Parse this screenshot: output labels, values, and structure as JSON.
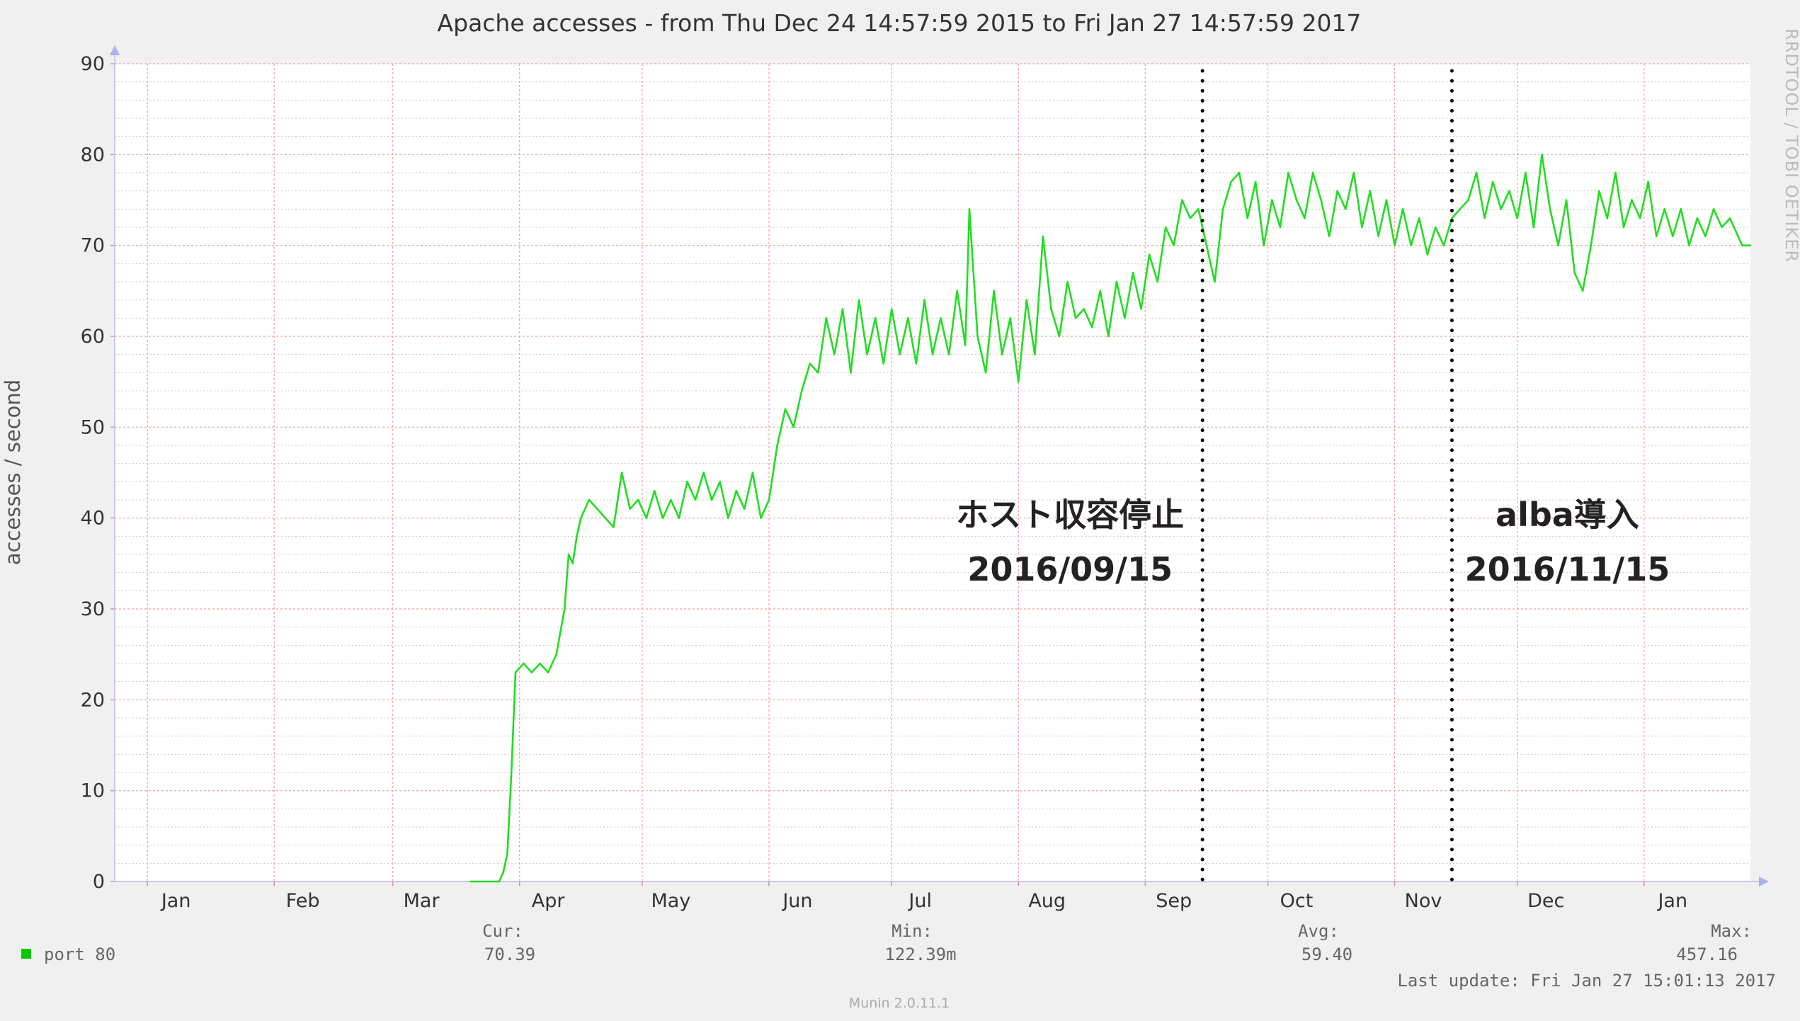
{
  "chart_data": {
    "type": "line",
    "title": "Apache accesses - from Thu Dec 24 14:57:59 2015 to Fri Jan 27 14:57:59 2017",
    "ylabel": "accesses / second",
    "xlabel": "",
    "ylim": [
      0,
      90
    ],
    "yticks": [
      "0",
      "10",
      "20",
      "30",
      "40",
      "50",
      "60",
      "70",
      "80",
      "90"
    ],
    "x_start": "2015-12-24",
    "x_end": "2017-01-27",
    "xticks": [
      {
        "label": "Jan",
        "date": "2016-01-08"
      },
      {
        "label": "Feb",
        "date": "2016-02-08"
      },
      {
        "label": "Mar",
        "date": "2016-03-08"
      },
      {
        "label": "Apr",
        "date": "2016-04-08"
      },
      {
        "label": "May",
        "date": "2016-05-08"
      },
      {
        "label": "Jun",
        "date": "2016-06-08"
      },
      {
        "label": "Jul",
        "date": "2016-07-08"
      },
      {
        "label": "Aug",
        "date": "2016-08-08"
      },
      {
        "label": "Sep",
        "date": "2016-09-08"
      },
      {
        "label": "Oct",
        "date": "2016-10-08"
      },
      {
        "label": "Nov",
        "date": "2016-11-08"
      },
      {
        "label": "Dec",
        "date": "2016-12-08"
      },
      {
        "label": "Jan",
        "date": "2017-01-08"
      }
    ],
    "month_boundaries": [
      "2016-01-01",
      "2016-02-01",
      "2016-03-01",
      "2016-04-01",
      "2016-05-01",
      "2016-06-01",
      "2016-07-01",
      "2016-08-01",
      "2016-09-01",
      "2016-10-01",
      "2016-11-01",
      "2016-12-01",
      "2017-01-01"
    ],
    "grid": true,
    "series": [
      {
        "name": "port 80",
        "color": "#00cc00",
        "line_color": "#22dd22",
        "points": [
          [
            "2016-03-20",
            0
          ],
          [
            "2016-03-27",
            0
          ],
          [
            "2016-03-28",
            1
          ],
          [
            "2016-03-29",
            3
          ],
          [
            "2016-03-30",
            12
          ],
          [
            "2016-03-31",
            23
          ],
          [
            "2016-04-02",
            24
          ],
          [
            "2016-04-04",
            23
          ],
          [
            "2016-04-06",
            24
          ],
          [
            "2016-04-08",
            23
          ],
          [
            "2016-04-10",
            25
          ],
          [
            "2016-04-12",
            30
          ],
          [
            "2016-04-13",
            36
          ],
          [
            "2016-04-14",
            35
          ],
          [
            "2016-04-15",
            38
          ],
          [
            "2016-04-16",
            40
          ],
          [
            "2016-04-18",
            42
          ],
          [
            "2016-04-20",
            41
          ],
          [
            "2016-04-22",
            40
          ],
          [
            "2016-04-24",
            39
          ],
          [
            "2016-04-26",
            45
          ],
          [
            "2016-04-28",
            41
          ],
          [
            "2016-04-30",
            42
          ],
          [
            "2016-05-02",
            40
          ],
          [
            "2016-05-04",
            43
          ],
          [
            "2016-05-06",
            40
          ],
          [
            "2016-05-08",
            42
          ],
          [
            "2016-05-10",
            40
          ],
          [
            "2016-05-12",
            44
          ],
          [
            "2016-05-14",
            42
          ],
          [
            "2016-05-16",
            45
          ],
          [
            "2016-05-18",
            42
          ],
          [
            "2016-05-20",
            44
          ],
          [
            "2016-05-22",
            40
          ],
          [
            "2016-05-24",
            43
          ],
          [
            "2016-05-26",
            41
          ],
          [
            "2016-05-28",
            45
          ],
          [
            "2016-05-30",
            40
          ],
          [
            "2016-06-01",
            42
          ],
          [
            "2016-06-03",
            48
          ],
          [
            "2016-06-05",
            52
          ],
          [
            "2016-06-07",
            50
          ],
          [
            "2016-06-09",
            54
          ],
          [
            "2016-06-11",
            57
          ],
          [
            "2016-06-13",
            56
          ],
          [
            "2016-06-15",
            62
          ],
          [
            "2016-06-17",
            58
          ],
          [
            "2016-06-19",
            63
          ],
          [
            "2016-06-21",
            56
          ],
          [
            "2016-06-23",
            64
          ],
          [
            "2016-06-25",
            58
          ],
          [
            "2016-06-27",
            62
          ],
          [
            "2016-06-29",
            57
          ],
          [
            "2016-07-01",
            63
          ],
          [
            "2016-07-03",
            58
          ],
          [
            "2016-07-05",
            62
          ],
          [
            "2016-07-07",
            57
          ],
          [
            "2016-07-09",
            64
          ],
          [
            "2016-07-11",
            58
          ],
          [
            "2016-07-13",
            62
          ],
          [
            "2016-07-15",
            58
          ],
          [
            "2016-07-17",
            65
          ],
          [
            "2016-07-19",
            59
          ],
          [
            "2016-07-20",
            74
          ],
          [
            "2016-07-22",
            60
          ],
          [
            "2016-07-24",
            56
          ],
          [
            "2016-07-26",
            65
          ],
          [
            "2016-07-28",
            58
          ],
          [
            "2016-07-30",
            62
          ],
          [
            "2016-08-01",
            55
          ],
          [
            "2016-08-03",
            64
          ],
          [
            "2016-08-05",
            58
          ],
          [
            "2016-08-07",
            71
          ],
          [
            "2016-08-09",
            63
          ],
          [
            "2016-08-11",
            60
          ],
          [
            "2016-08-13",
            66
          ],
          [
            "2016-08-15",
            62
          ],
          [
            "2016-08-17",
            63
          ],
          [
            "2016-08-19",
            61
          ],
          [
            "2016-08-21",
            65
          ],
          [
            "2016-08-23",
            60
          ],
          [
            "2016-08-25",
            66
          ],
          [
            "2016-08-27",
            62
          ],
          [
            "2016-08-29",
            67
          ],
          [
            "2016-08-31",
            63
          ],
          [
            "2016-09-02",
            69
          ],
          [
            "2016-09-04",
            66
          ],
          [
            "2016-09-06",
            72
          ],
          [
            "2016-09-08",
            70
          ],
          [
            "2016-09-10",
            75
          ],
          [
            "2016-09-12",
            73
          ],
          [
            "2016-09-14",
            74
          ],
          [
            "2016-09-16",
            70
          ],
          [
            "2016-09-18",
            66
          ],
          [
            "2016-09-20",
            74
          ],
          [
            "2016-09-22",
            77
          ],
          [
            "2016-09-24",
            78
          ],
          [
            "2016-09-26",
            73
          ],
          [
            "2016-09-28",
            77
          ],
          [
            "2016-09-30",
            70
          ],
          [
            "2016-10-02",
            75
          ],
          [
            "2016-10-04",
            72
          ],
          [
            "2016-10-06",
            78
          ],
          [
            "2016-10-08",
            75
          ],
          [
            "2016-10-10",
            73
          ],
          [
            "2016-10-12",
            78
          ],
          [
            "2016-10-14",
            75
          ],
          [
            "2016-10-16",
            71
          ],
          [
            "2016-10-18",
            76
          ],
          [
            "2016-10-20",
            74
          ],
          [
            "2016-10-22",
            78
          ],
          [
            "2016-10-24",
            72
          ],
          [
            "2016-10-26",
            76
          ],
          [
            "2016-10-28",
            71
          ],
          [
            "2016-10-30",
            75
          ],
          [
            "2016-11-01",
            70
          ],
          [
            "2016-11-03",
            74
          ],
          [
            "2016-11-05",
            70
          ],
          [
            "2016-11-07",
            73
          ],
          [
            "2016-11-09",
            69
          ],
          [
            "2016-11-11",
            72
          ],
          [
            "2016-11-13",
            70
          ],
          [
            "2016-11-15",
            73
          ],
          [
            "2016-11-17",
            74
          ],
          [
            "2016-11-19",
            75
          ],
          [
            "2016-11-21",
            78
          ],
          [
            "2016-11-23",
            73
          ],
          [
            "2016-11-25",
            77
          ],
          [
            "2016-11-27",
            74
          ],
          [
            "2016-11-29",
            76
          ],
          [
            "2016-12-01",
            73
          ],
          [
            "2016-12-03",
            78
          ],
          [
            "2016-12-05",
            72
          ],
          [
            "2016-12-07",
            80
          ],
          [
            "2016-12-09",
            74
          ],
          [
            "2016-12-11",
            70
          ],
          [
            "2016-12-13",
            75
          ],
          [
            "2016-12-15",
            67
          ],
          [
            "2016-12-17",
            65
          ],
          [
            "2016-12-19",
            70
          ],
          [
            "2016-12-21",
            76
          ],
          [
            "2016-12-23",
            73
          ],
          [
            "2016-12-25",
            78
          ],
          [
            "2016-12-27",
            72
          ],
          [
            "2016-12-29",
            75
          ],
          [
            "2016-12-31",
            73
          ],
          [
            "2017-01-02",
            77
          ],
          [
            "2017-01-04",
            71
          ],
          [
            "2017-01-06",
            74
          ],
          [
            "2017-01-08",
            71
          ],
          [
            "2017-01-10",
            74
          ],
          [
            "2017-01-12",
            70
          ],
          [
            "2017-01-14",
            73
          ],
          [
            "2017-01-16",
            71
          ],
          [
            "2017-01-18",
            74
          ],
          [
            "2017-01-20",
            72
          ],
          [
            "2017-01-22",
            73
          ],
          [
            "2017-01-25",
            70
          ],
          [
            "2017-01-27",
            70
          ]
        ]
      }
    ],
    "events": [
      {
        "date": "2016-09-15",
        "label": "ホスト収容停止",
        "date_label": "2016/09/15"
      },
      {
        "date": "2016-11-15",
        "label": "alba導入",
        "date_label": "2016/11/15"
      }
    ],
    "legend": {
      "name": "port 80",
      "cur_label": "Cur:",
      "cur": "70.39",
      "min_label": "Min:",
      "min": "122.39m",
      "avg_label": "Avg:",
      "avg": "59.40",
      "max_label": "Max:",
      "max": "457.16"
    },
    "last_update": "Last update: Fri Jan 27 15:01:13 2017",
    "credit": "RRDTOOL / TOBI OETIKER",
    "version": "Munin 2.0.11.1"
  }
}
